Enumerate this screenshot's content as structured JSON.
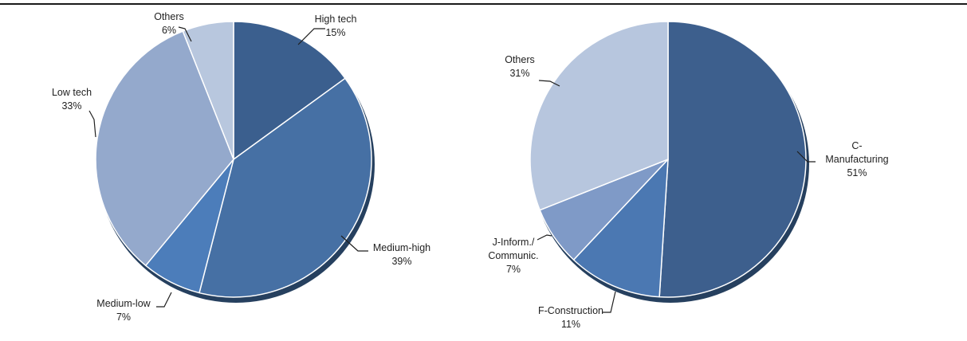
{
  "chart_data": [
    {
      "type": "pie",
      "slices": [
        {
          "label_lines": [
            "High tech"
          ],
          "value": 15,
          "value_label": "15%",
          "color": "#3b5f8e"
        },
        {
          "label_lines": [
            "Medium-high"
          ],
          "value": 39,
          "value_label": "39%",
          "color": "#4670a4"
        },
        {
          "label_lines": [
            "Medium-low"
          ],
          "value": 7,
          "value_label": "7%",
          "color": "#4c7dba"
        },
        {
          "label_lines": [
            "Low tech"
          ],
          "value": 33,
          "value_label": "33%",
          "color": "#94a9cc"
        },
        {
          "label_lines": [
            "Others"
          ],
          "value": 6,
          "value_label": "6%",
          "color": "#b8c7de"
        }
      ]
    },
    {
      "type": "pie",
      "slices": [
        {
          "label_lines": [
            "C-",
            "Manufacturing"
          ],
          "value": 51,
          "value_label": "51%",
          "color": "#3d5f8d"
        },
        {
          "label_lines": [
            "F-Construction"
          ],
          "value": 11,
          "value_label": "11%",
          "color": "#4b78b2"
        },
        {
          "label_lines": [
            "J-Inform./",
            "Communic."
          ],
          "value": 7,
          "value_label": "7%",
          "color": "#7f9ac7"
        },
        {
          "label_lines": [
            "Others"
          ],
          "value": 31,
          "value_label": "31%",
          "color": "#b7c6de"
        }
      ]
    }
  ]
}
